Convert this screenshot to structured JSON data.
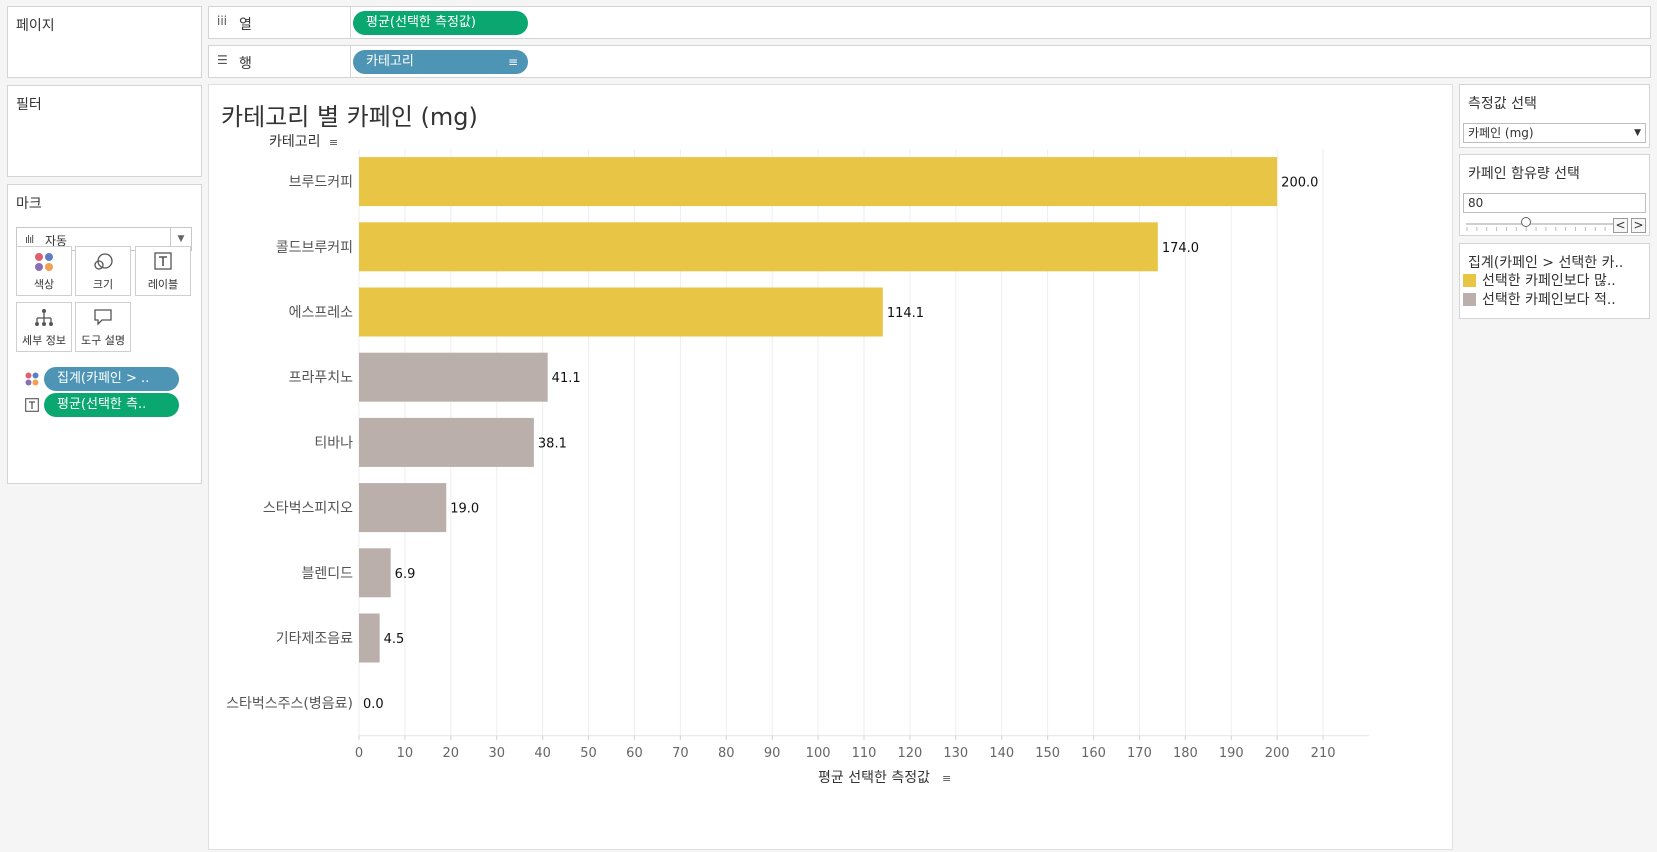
{
  "pages": {
    "title": "페이지"
  },
  "filters": {
    "title": "필터"
  },
  "marks": {
    "title": "마크",
    "mark_type": "자동",
    "buttons": [
      {
        "label": "색상",
        "icon": "color-dots-icon"
      },
      {
        "label": "크기",
        "icon": "size-circles-icon"
      },
      {
        "label": "레이블",
        "icon": "label-t-icon"
      },
      {
        "label": "세부 정보",
        "icon": "detail-tree-icon"
      },
      {
        "label": "도구 설명",
        "icon": "tooltip-bubble-icon"
      }
    ],
    "pills": [
      {
        "label": "집계(카페인 > ..",
        "icon": "color-dots-icon",
        "color": "#4d94b5"
      },
      {
        "label": "평균(선택한 측..",
        "icon": "label-t-icon",
        "color": "#0aa870"
      }
    ]
  },
  "shelves": {
    "columns": {
      "icon": "iii",
      "label": "열",
      "pill": "평균(선택한 측정값)"
    },
    "rows": {
      "icon": "☰",
      "label": "행",
      "pill": "카테고리"
    }
  },
  "chart_data": {
    "type": "bar",
    "orientation": "horizontal",
    "title": "카테고리 별 카페인 (mg)",
    "category_header": "카테고리",
    "xlabel": "평균 선택한 측정값",
    "categories": [
      "브루드커피",
      "콜드브루커피",
      "에스프레소",
      "프라푸치노",
      "티바나",
      "스타벅스피지오",
      "블렌디드",
      "기타제조음료",
      "스타벅스주스(병음료)"
    ],
    "values": [
      200.0,
      174.0,
      114.1,
      41.1,
      38.1,
      19.0,
      6.9,
      4.5,
      0.0
    ],
    "value_labels": [
      "200.0",
      "174.0",
      "114.1",
      "41.1",
      "38.1",
      "19.0",
      "6.9",
      "4.5",
      "0.0"
    ],
    "groups": [
      "above",
      "above",
      "above",
      "below",
      "below",
      "below",
      "below",
      "below",
      "below"
    ],
    "xlim": [
      0,
      220
    ],
    "xticks": [
      0,
      10,
      20,
      30,
      40,
      50,
      60,
      70,
      80,
      90,
      100,
      110,
      120,
      130,
      140,
      150,
      160,
      170,
      180,
      190,
      200,
      210
    ],
    "grid": "vertical",
    "colors": {
      "above": "#e8c545",
      "below": "#baafaa"
    }
  },
  "measure_select": {
    "title": "측정값 선택",
    "value": "카페인 (mg)"
  },
  "caffeine_select": {
    "title": "카페인 함유량 선택",
    "value": "80",
    "slider_fraction": 0.4,
    "prev": "<",
    "next": ">"
  },
  "legend": {
    "title": "집계(카페인 > 선택한 카..",
    "items": [
      {
        "label": "선택한 카페인보다 많..",
        "color": "#e8c545"
      },
      {
        "label": "선택한 카페인보다 적..",
        "color": "#baafaa"
      }
    ]
  }
}
